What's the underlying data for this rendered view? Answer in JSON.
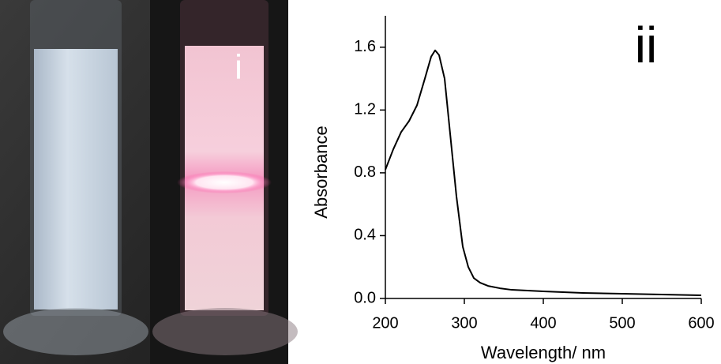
{
  "photo": {
    "label": "i"
  },
  "chart_data": {
    "type": "line",
    "annotations": [
      "ii"
    ],
    "x_label": "Wavelength/ nm",
    "y_label": "Absorbance",
    "x": [
      200,
      210,
      220,
      230,
      240,
      250,
      258,
      263,
      268,
      275,
      282,
      290,
      298,
      305,
      312,
      320,
      330,
      345,
      360,
      380,
      400,
      450,
      500,
      550,
      600
    ],
    "series": [
      {
        "color": "#000000",
        "values": [
          0.82,
          0.95,
          1.06,
          1.13,
          1.23,
          1.4,
          1.54,
          1.58,
          1.55,
          1.4,
          1.05,
          0.65,
          0.33,
          0.2,
          0.13,
          0.1,
          0.08,
          0.065,
          0.055,
          0.05,
          0.045,
          0.035,
          0.03,
          0.025,
          0.02
        ]
      }
    ],
    "xlim": [
      200,
      600
    ],
    "ylim": [
      0,
      1.8
    ],
    "xticks": [
      200,
      300,
      400,
      500,
      600
    ],
    "yticks": [
      {
        "value": 0,
        "label": "0.0"
      },
      0.4,
      0.8,
      1.2,
      1.6
    ],
    "grid": false
  }
}
